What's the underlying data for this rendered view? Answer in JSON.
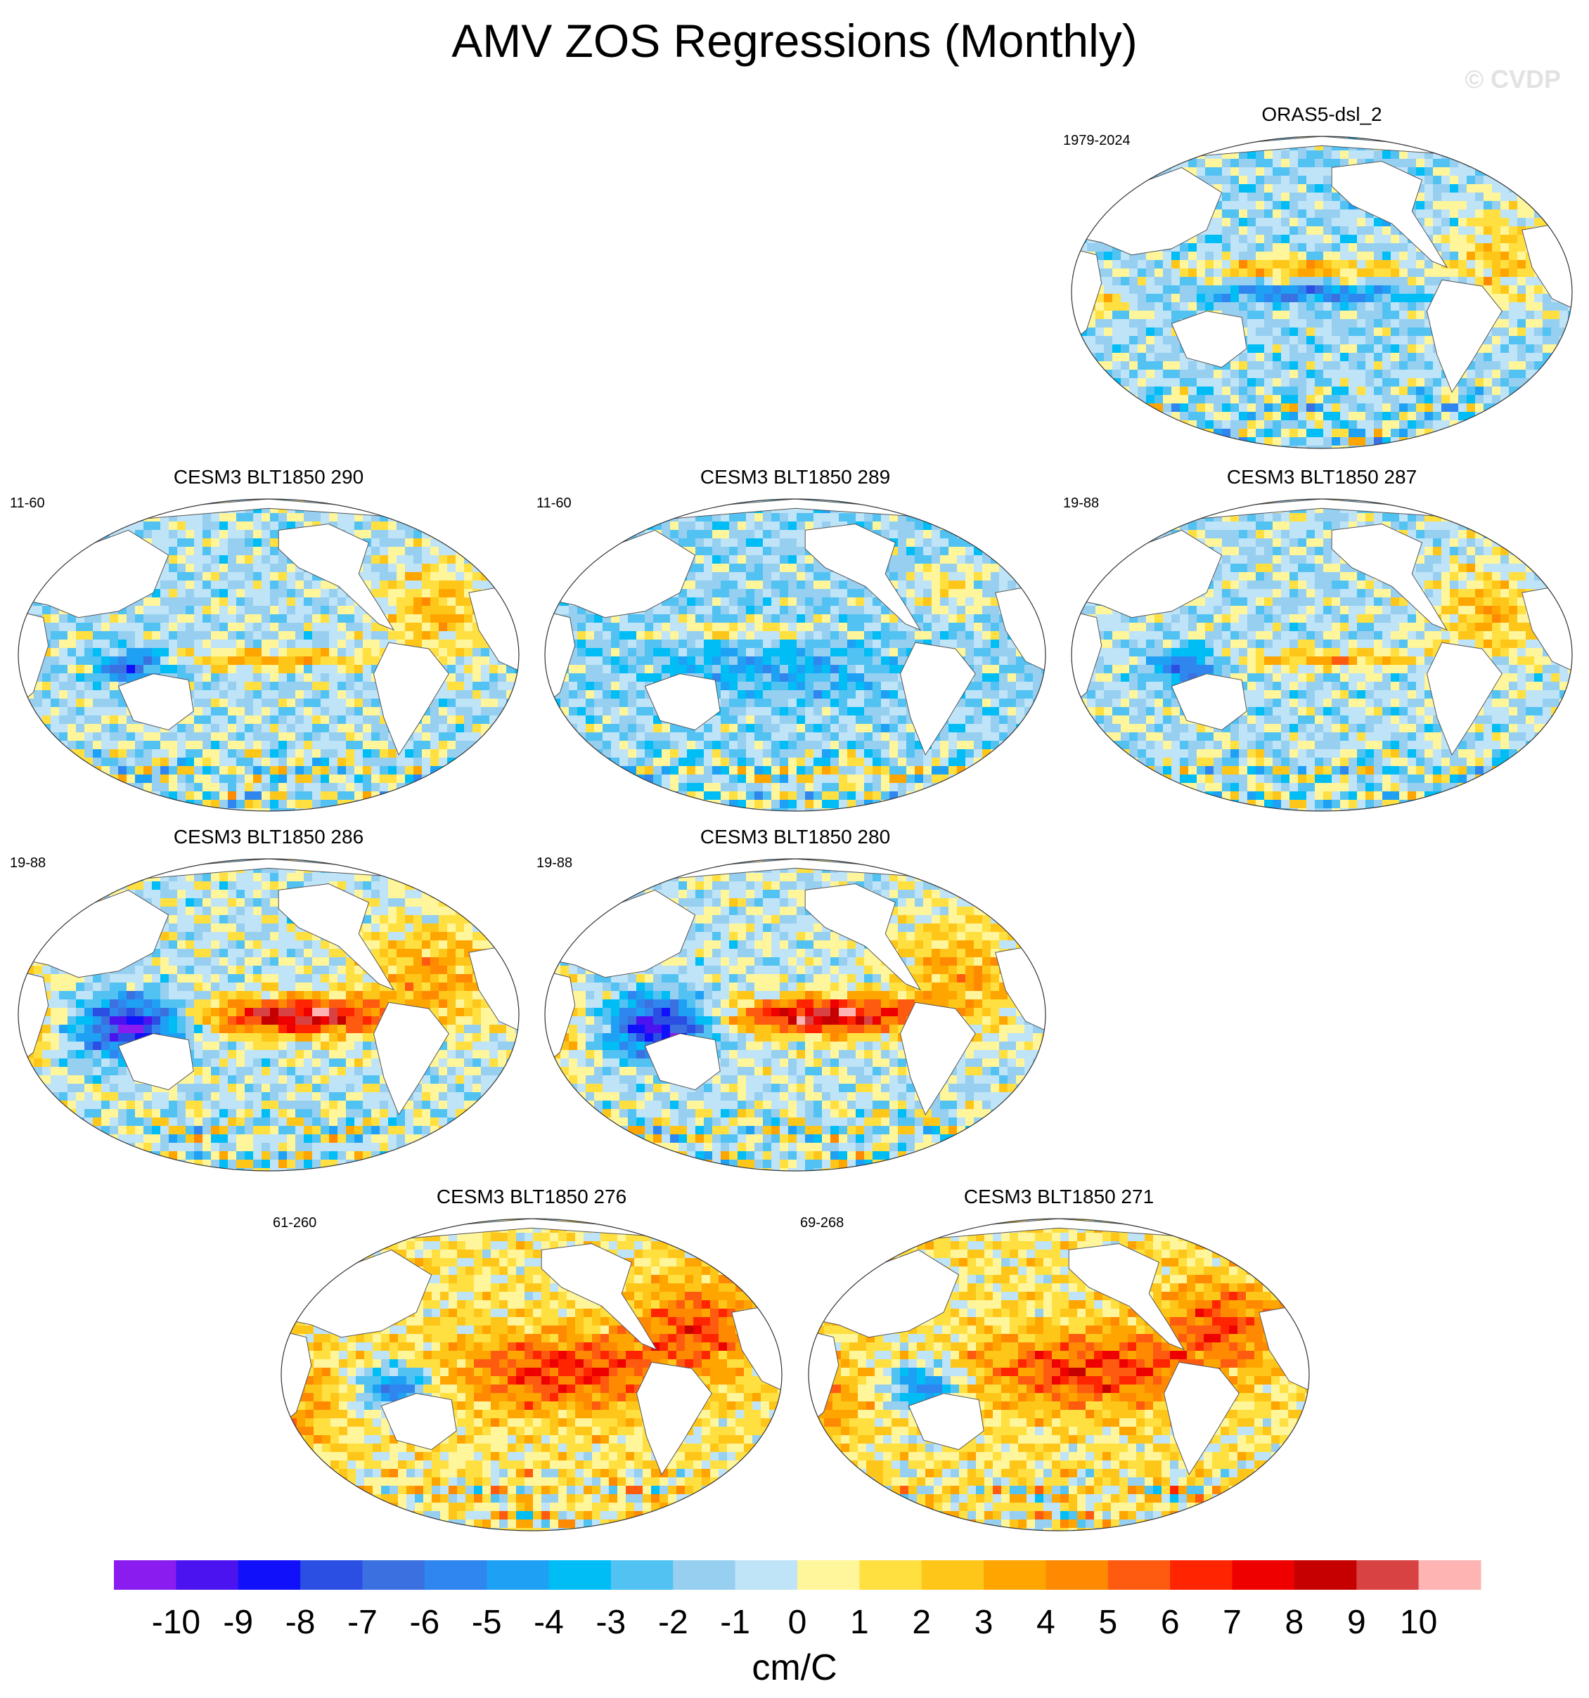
{
  "chart_data": {
    "type": "heatmap",
    "title": "AMV ZOS Regressions (Monthly)",
    "watermark": "© CVDP",
    "units": "cm/C",
    "colorbar": {
      "labels": [
        "-10",
        "-9",
        "-8",
        "-7",
        "-6",
        "-5",
        "-4",
        "-3",
        "-2",
        "-1",
        "0",
        "1",
        "2",
        "3",
        "4",
        "5",
        "6",
        "7",
        "8",
        "9",
        "10"
      ],
      "colors": [
        "#8a1cf0",
        "#4b13f0",
        "#1010fa",
        "#2b4fe3",
        "#3a70e0",
        "#2f86ef",
        "#1ea0f5",
        "#00bdf6",
        "#52c2f3",
        "#97cff0",
        "#bfe3f7",
        "#fff59a",
        "#ffe040",
        "#ffc61a",
        "#ffa500",
        "#ff8900",
        "#ff5b10",
        "#ff2500",
        "#ee0000",
        "#c60000",
        "#d84242",
        "#ffb4b4"
      ]
    },
    "panels": [
      {
        "title": "ORAS5-dsl_2",
        "years": "1979-2024",
        "pattern": "obs",
        "seed": 11
      },
      {
        "title": "CESM3 BLT1850 290",
        "years": "11-60",
        "pattern": "mixed",
        "seed": 23
      },
      {
        "title": "CESM3 BLT1850 289",
        "years": "11-60",
        "pattern": "weak",
        "seed": 37
      },
      {
        "title": "CESM3 BLT1850 287",
        "years": "19-88",
        "pattern": "mixed",
        "seed": 41
      },
      {
        "title": "CESM3 BLT1850 286",
        "years": "19-88",
        "pattern": "strong",
        "seed": 53
      },
      {
        "title": "CESM3 BLT1850 280",
        "years": "19-88",
        "pattern": "strong",
        "seed": 67
      },
      {
        "title": "CESM3 BLT1850 276",
        "years": "61-260",
        "pattern": "warm",
        "seed": 79
      },
      {
        "title": "CESM3 BLT1850 271",
        "years": "69-268",
        "pattern": "warm",
        "seed": 83
      }
    ]
  }
}
